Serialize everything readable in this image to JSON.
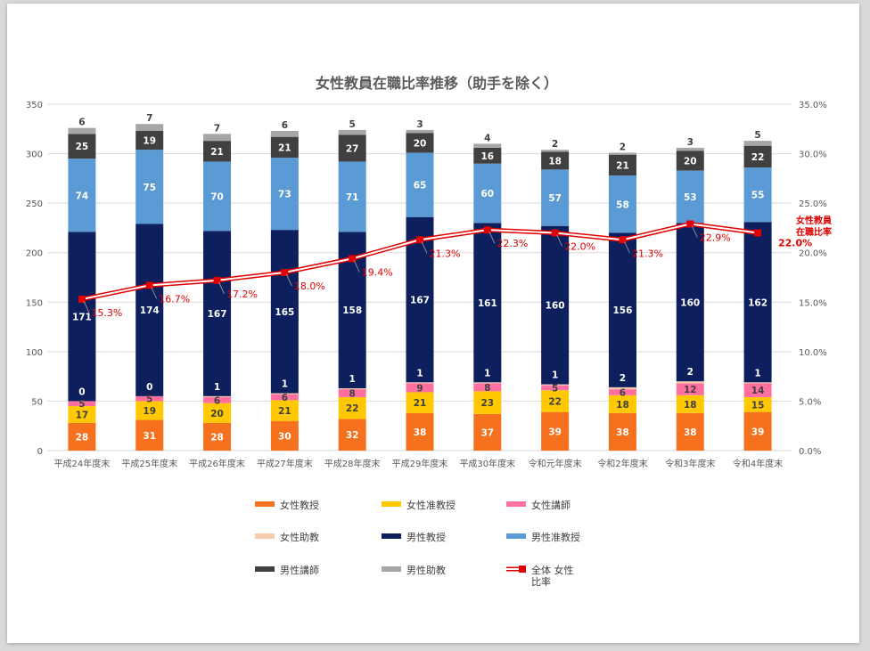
{
  "chart_data": {
    "type": "bar",
    "stacked": true,
    "title": "女性教員在職比率推移（助手を除く）",
    "categories": [
      "平成24年度末",
      "平成25年度末",
      "平成26年度末",
      "平成27年度末",
      "平成28年度末",
      "平成29年度末",
      "平成30年度末",
      "令和元年度末",
      "令和2年度末",
      "令和3年度末",
      "令和4年度末"
    ],
    "y_left": {
      "min": 0,
      "max": 350,
      "step": 50,
      "ticks": [
        "0",
        "50",
        "100",
        "150",
        "200",
        "250",
        "300",
        "350"
      ]
    },
    "y_right": {
      "min": 0,
      "max": 35,
      "ticks": [
        "0.0%",
        "5.0%",
        "10.0%",
        "15.0%",
        "20.0%",
        "25.0%",
        "30.0%",
        "35.0%"
      ]
    },
    "series": [
      {
        "name": "女性教授",
        "color": "#f5711e",
        "label_color": "#ffffff",
        "values": [
          28,
          31,
          28,
          30,
          32,
          38,
          37,
          39,
          38,
          38,
          39
        ]
      },
      {
        "name": "女性准教授",
        "color": "#ffc800",
        "label_color": "#404040",
        "values": [
          17,
          19,
          20,
          21,
          22,
          21,
          23,
          22,
          18,
          18,
          15
        ]
      },
      {
        "name": "女性講師",
        "color": "#ff6f9f",
        "label_color": "#404040",
        "values": [
          5,
          5,
          6,
          6,
          8,
          9,
          8,
          5,
          6,
          12,
          14
        ]
      },
      {
        "name": "女性助教",
        "color": "#f8cbad",
        "label_color": "#ffffff",
        "values": [
          0,
          0,
          1,
          1,
          1,
          1,
          1,
          1,
          2,
          2,
          1
        ]
      },
      {
        "name": "男性教授",
        "color": "#0d1f5c",
        "label_color": "#ffffff",
        "values": [
          171,
          174,
          167,
          165,
          158,
          167,
          161,
          160,
          156,
          160,
          162
        ]
      },
      {
        "name": "男性准教授",
        "color": "#5b9bd5",
        "label_color": "#ffffff",
        "values": [
          74,
          75,
          70,
          73,
          71,
          65,
          60,
          57,
          58,
          53,
          55
        ]
      },
      {
        "name": "男性講師",
        "color": "#404040",
        "label_color": "#ffffff",
        "values": [
          25,
          19,
          21,
          21,
          27,
          20,
          16,
          18,
          21,
          20,
          22
        ]
      },
      {
        "name": "男性助教",
        "color": "#a6a6a6",
        "label_color": "#404040",
        "values": [
          6,
          7,
          7,
          6,
          5,
          3,
          4,
          2,
          2,
          3,
          5
        ]
      }
    ],
    "line": {
      "name": "全体 女性比率",
      "legend_line1": "全体 女性",
      "legend_line2": "比率",
      "color": "#e00000",
      "values": [
        15.3,
        16.7,
        17.2,
        18.0,
        19.4,
        21.3,
        22.3,
        22.0,
        21.3,
        22.9,
        22.0
      ],
      "labels": [
        "15.3%",
        "16.7%",
        "17.2%",
        "18.0%",
        "19.4%",
        "21.3%",
        "22.3%",
        "22.0%",
        "21.3%",
        "22.9%",
        "22.0%"
      ]
    },
    "annotation": {
      "line1": "女性教員",
      "line2": "在職比率"
    },
    "legend_position": "bottom"
  }
}
